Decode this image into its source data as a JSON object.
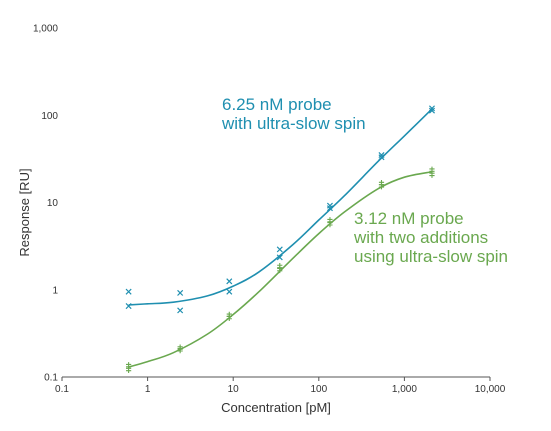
{
  "chart_data": {
    "type": "scatter",
    "title": "",
    "xlabel": "Concentration [pM]",
    "ylabel": "Response [RU]",
    "x_scale": "log",
    "y_scale": "log",
    "xlim": [
      0.1,
      10000
    ],
    "ylim": [
      0.1,
      1000
    ],
    "grid": false,
    "legend": "none",
    "x_ticks": [
      {
        "value": 0.1,
        "label": "0.1"
      },
      {
        "value": 1,
        "label": "1"
      },
      {
        "value": 10,
        "label": "10"
      },
      {
        "value": 100,
        "label": "100"
      },
      {
        "value": 1000,
        "label": "1,000"
      },
      {
        "value": 10000,
        "label": "10,000"
      }
    ],
    "y_ticks": [
      {
        "value": 0.1,
        "label": "0.1"
      },
      {
        "value": 1,
        "label": "1"
      },
      {
        "value": 10,
        "label": "10"
      },
      {
        "value": 100,
        "label": "100"
      },
      {
        "value": 1000,
        "label": "1,000"
      }
    ],
    "series": [
      {
        "color": "#1f8fb0",
        "marker": "x",
        "annotation": [
          "6.25 nM probe",
          "with ultra-slow spin"
        ],
        "points": [
          {
            "x": 0.6,
            "y": 0.95
          },
          {
            "x": 0.6,
            "y": 0.65
          },
          {
            "x": 2.4,
            "y": 0.92
          },
          {
            "x": 2.4,
            "y": 0.58
          },
          {
            "x": 9,
            "y": 1.25
          },
          {
            "x": 9,
            "y": 0.95
          },
          {
            "x": 35,
            "y": 2.9
          },
          {
            "x": 35,
            "y": 2.35
          },
          {
            "x": 135,
            "y": 9.2
          },
          {
            "x": 135,
            "y": 8.6
          },
          {
            "x": 540,
            "y": 35
          },
          {
            "x": 540,
            "y": 33
          },
          {
            "x": 2100,
            "y": 120
          },
          {
            "x": 2100,
            "y": 113
          }
        ],
        "fit": [
          {
            "x": 0.6,
            "y": 0.67
          },
          {
            "x": 1,
            "y": 0.69
          },
          {
            "x": 2,
            "y": 0.72
          },
          {
            "x": 5,
            "y": 0.85
          },
          {
            "x": 10,
            "y": 1.1
          },
          {
            "x": 20,
            "y": 1.6
          },
          {
            "x": 50,
            "y": 3.3
          },
          {
            "x": 100,
            "y": 6.3
          },
          {
            "x": 200,
            "y": 12
          },
          {
            "x": 500,
            "y": 30
          },
          {
            "x": 1000,
            "y": 58
          },
          {
            "x": 2100,
            "y": 118
          }
        ]
      },
      {
        "color": "#6aa84f",
        "marker": "tick",
        "annotation": [
          "3.12 nM probe",
          "with two additions",
          "using ultra-slow spin"
        ],
        "points": [
          {
            "x": 0.6,
            "y": 0.135
          },
          {
            "x": 0.6,
            "y": 0.122
          },
          {
            "x": 2.4,
            "y": 0.215
          },
          {
            "x": 2.4,
            "y": 0.205
          },
          {
            "x": 9,
            "y": 0.51
          },
          {
            "x": 9,
            "y": 0.48
          },
          {
            "x": 35,
            "y": 1.85
          },
          {
            "x": 35,
            "y": 1.7
          },
          {
            "x": 135,
            "y": 6.2
          },
          {
            "x": 135,
            "y": 5.7
          },
          {
            "x": 540,
            "y": 16.5
          },
          {
            "x": 540,
            "y": 15.5
          },
          {
            "x": 2100,
            "y": 23.5
          },
          {
            "x": 2100,
            "y": 21
          }
        ],
        "fit": [
          {
            "x": 0.6,
            "y": 0.13
          },
          {
            "x": 1,
            "y": 0.15
          },
          {
            "x": 2,
            "y": 0.19
          },
          {
            "x": 5,
            "y": 0.31
          },
          {
            "x": 10,
            "y": 0.52
          },
          {
            "x": 20,
            "y": 0.95
          },
          {
            "x": 50,
            "y": 2.3
          },
          {
            "x": 100,
            "y": 4.4
          },
          {
            "x": 200,
            "y": 7.8
          },
          {
            "x": 500,
            "y": 14.5
          },
          {
            "x": 1000,
            "y": 19.5
          },
          {
            "x": 2100,
            "y": 22.5
          }
        ]
      }
    ]
  }
}
